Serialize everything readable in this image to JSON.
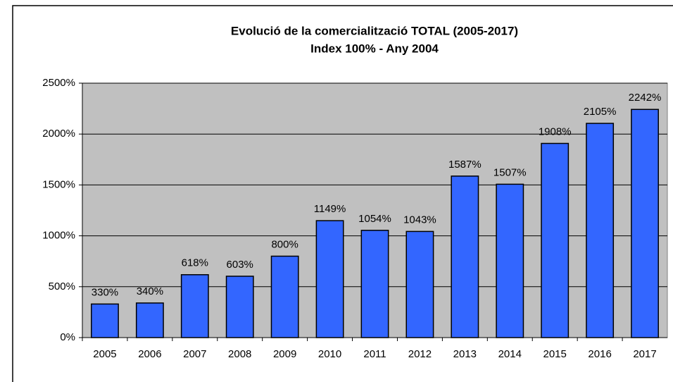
{
  "chart_data": {
    "type": "bar",
    "title": "Evolució de la comercialització TOTAL (2005-2017)",
    "subtitle": "Index 100% - Any 2004",
    "categories": [
      "2005",
      "2006",
      "2007",
      "2008",
      "2009",
      "2010",
      "2011",
      "2012",
      "2013",
      "2014",
      "2015",
      "2016",
      "2017"
    ],
    "values": [
      330,
      340,
      618,
      603,
      800,
      1149,
      1054,
      1043,
      1587,
      1507,
      1908,
      2105,
      2242
    ],
    "value_labels": [
      "330%",
      "340%",
      "618%",
      "603%",
      "800%",
      "1149%",
      "1054%",
      "1043%",
      "1587%",
      "1507%",
      "1908%",
      "2105%",
      "2242%"
    ],
    "color": "#3366ff",
    "ylim": [
      0,
      2500
    ],
    "yticks": [
      {
        "value": 0,
        "label": "0%"
      },
      {
        "value": 500,
        "label": "500%"
      },
      {
        "value": 1000,
        "label": "1000%"
      },
      {
        "value": 1500,
        "label": "1500%"
      },
      {
        "value": 2000,
        "label": "2000%"
      },
      {
        "value": 2500,
        "label": "2500%"
      }
    ],
    "grid": true
  }
}
